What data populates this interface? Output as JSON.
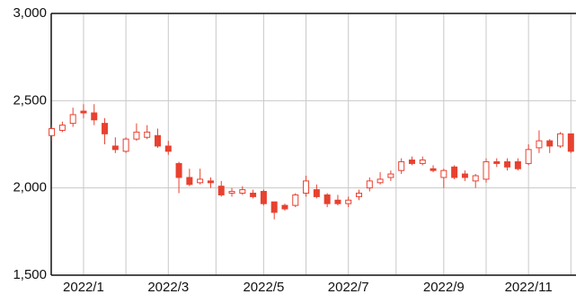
{
  "chart_data": {
    "type": "candlestick",
    "color": "#e8412f",
    "grid": true,
    "categories": [
      null,
      null,
      null,
      "2022/1",
      null,
      null,
      null,
      null,
      null,
      null,
      null,
      "2022/3",
      null,
      null,
      null,
      null,
      null,
      null,
      null,
      null,
      "2022/5",
      null,
      null,
      null,
      null,
      null,
      null,
      null,
      "2022/7",
      null,
      null,
      null,
      null,
      null,
      null,
      null,
      null,
      "2022/9",
      null,
      null,
      null,
      null,
      null,
      null,
      null,
      "2022/11",
      null,
      null,
      null,
      null
    ],
    "series": [
      {
        "open": [
          2300,
          2330,
          2370,
          2440,
          2430,
          2370,
          2240,
          2210,
          2280,
          2290,
          2300,
          2240,
          2140,
          2060,
          2030,
          2040,
          2010,
          1970,
          1970,
          1970,
          1980,
          1920,
          1900,
          1900,
          1970,
          1990,
          1960,
          1930,
          1910,
          1950,
          2000,
          2030,
          2060,
          2100,
          2160,
          2140,
          2110,
          2060,
          2120,
          2080,
          2040,
          2050,
          2150,
          2150,
          2150,
          2140,
          2230,
          2270,
          2240,
          2310
        ],
        "high": [
          2360,
          2380,
          2460,
          2480,
          2480,
          2400,
          2290,
          2290,
          2370,
          2360,
          2340,
          2270,
          2150,
          2110,
          2110,
          2060,
          2040,
          2000,
          2010,
          1990,
          1990,
          1920,
          1910,
          1970,
          2070,
          2020,
          1970,
          1960,
          1950,
          1990,
          2060,
          2090,
          2100,
          2170,
          2180,
          2180,
          2130,
          2110,
          2130,
          2100,
          2080,
          2170,
          2170,
          2170,
          2170,
          2250,
          2330,
          2280,
          2320,
          2310
        ],
        "low": [
          2270,
          2320,
          2350,
          2400,
          2360,
          2250,
          2200,
          2200,
          2270,
          2280,
          2230,
          2190,
          1970,
          2010,
          2020,
          2000,
          1950,
          1950,
          1960,
          1940,
          1900,
          1820,
          1870,
          1890,
          1950,
          1940,
          1890,
          1900,
          1890,
          1930,
          1980,
          2020,
          2040,
          2080,
          2130,
          2130,
          2090,
          2000,
          2050,
          2040,
          2000,
          2030,
          2120,
          2100,
          2100,
          2130,
          2200,
          2200,
          2230,
          2200
        ],
        "close": [
          2340,
          2360,
          2420,
          2430,
          2390,
          2310,
          2220,
          2280,
          2320,
          2320,
          2240,
          2210,
          2060,
          2020,
          2050,
          2030,
          1960,
          1980,
          1990,
          1950,
          1910,
          1860,
          1880,
          1960,
          2040,
          1950,
          1910,
          1910,
          1930,
          1970,
          2040,
          2050,
          2080,
          2150,
          2140,
          2160,
          2100,
          2100,
          2060,
          2060,
          2070,
          2150,
          2140,
          2120,
          2110,
          2220,
          2270,
          2240,
          2310,
          2210
        ]
      }
    ],
    "ylim": [
      1500,
      3000
    ],
    "yticks": [
      {
        "value": 1500,
        "label": "1,500"
      },
      {
        "value": 2000,
        "label": "2,000"
      },
      {
        "value": 2500,
        "label": "2,500"
      },
      {
        "value": 3000,
        "label": "3,000"
      }
    ]
  }
}
